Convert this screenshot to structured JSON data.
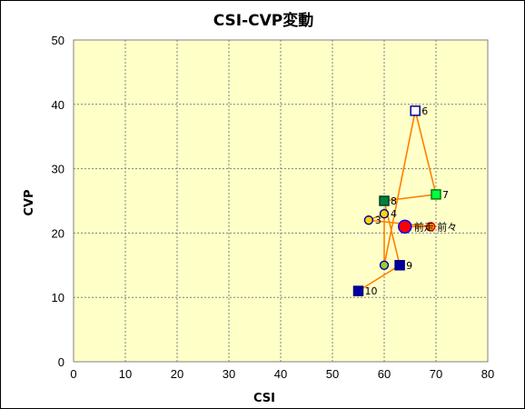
{
  "chart_data": {
    "type": "scatter",
    "title": "CSI-CVP変動",
    "xlabel": "CSI",
    "ylabel": "CVP",
    "xlim": [
      0,
      80
    ],
    "ylim": [
      0,
      50
    ],
    "xticks": [
      "0",
      "10",
      "20",
      "30",
      "40",
      "50",
      "60",
      "70",
      "80"
    ],
    "yticks": [
      "0",
      "10",
      "20",
      "30",
      "40",
      "50"
    ],
    "grid": true,
    "legend": "none",
    "colors": {
      "plot_background": "#ffffc8",
      "grid": "#808080",
      "trend_line": "#ff8000"
    },
    "series": [
      {
        "points": [
          {
            "x": 55,
            "y": 11,
            "label": "10",
            "marker": "square",
            "fill": "#0000a0",
            "stroke": "#000080"
          },
          {
            "x": 63,
            "y": 15,
            "label": "9",
            "marker": "square",
            "fill": "#0000a0",
            "stroke": "#000080"
          },
          {
            "x": 60,
            "y": 25,
            "label": "8",
            "marker": "square",
            "fill": "#008040",
            "stroke": "#004020"
          },
          {
            "x": 70,
            "y": 26,
            "label": "7",
            "marker": "square",
            "fill": "#00ff40",
            "stroke": "#008000"
          },
          {
            "x": 66,
            "y": 39,
            "label": "6",
            "marker": "square",
            "fill": "#ffffff",
            "stroke": "#0000a0"
          },
          {
            "x": 60,
            "y": 15,
            "label": "",
            "marker": "circle",
            "fill": "#9acd32",
            "stroke": "#0000a0"
          },
          {
            "x": 60,
            "y": 23,
            "label": "4",
            "marker": "circle",
            "fill": "#ffd700",
            "stroke": "#0000a0"
          },
          {
            "x": 57,
            "y": 22,
            "label": "3",
            "marker": "circle",
            "fill": "#ffd700",
            "stroke": "#0000a0"
          },
          {
            "x": 69,
            "y": 21,
            "label": "前々",
            "marker": "circle",
            "fill": "#ff8c00",
            "stroke": "#ff0000"
          },
          {
            "x": 64,
            "y": 21,
            "label": "前走",
            "marker": "circle-large",
            "fill": "#ff0000",
            "stroke": "#0000ff"
          }
        ]
      }
    ]
  }
}
